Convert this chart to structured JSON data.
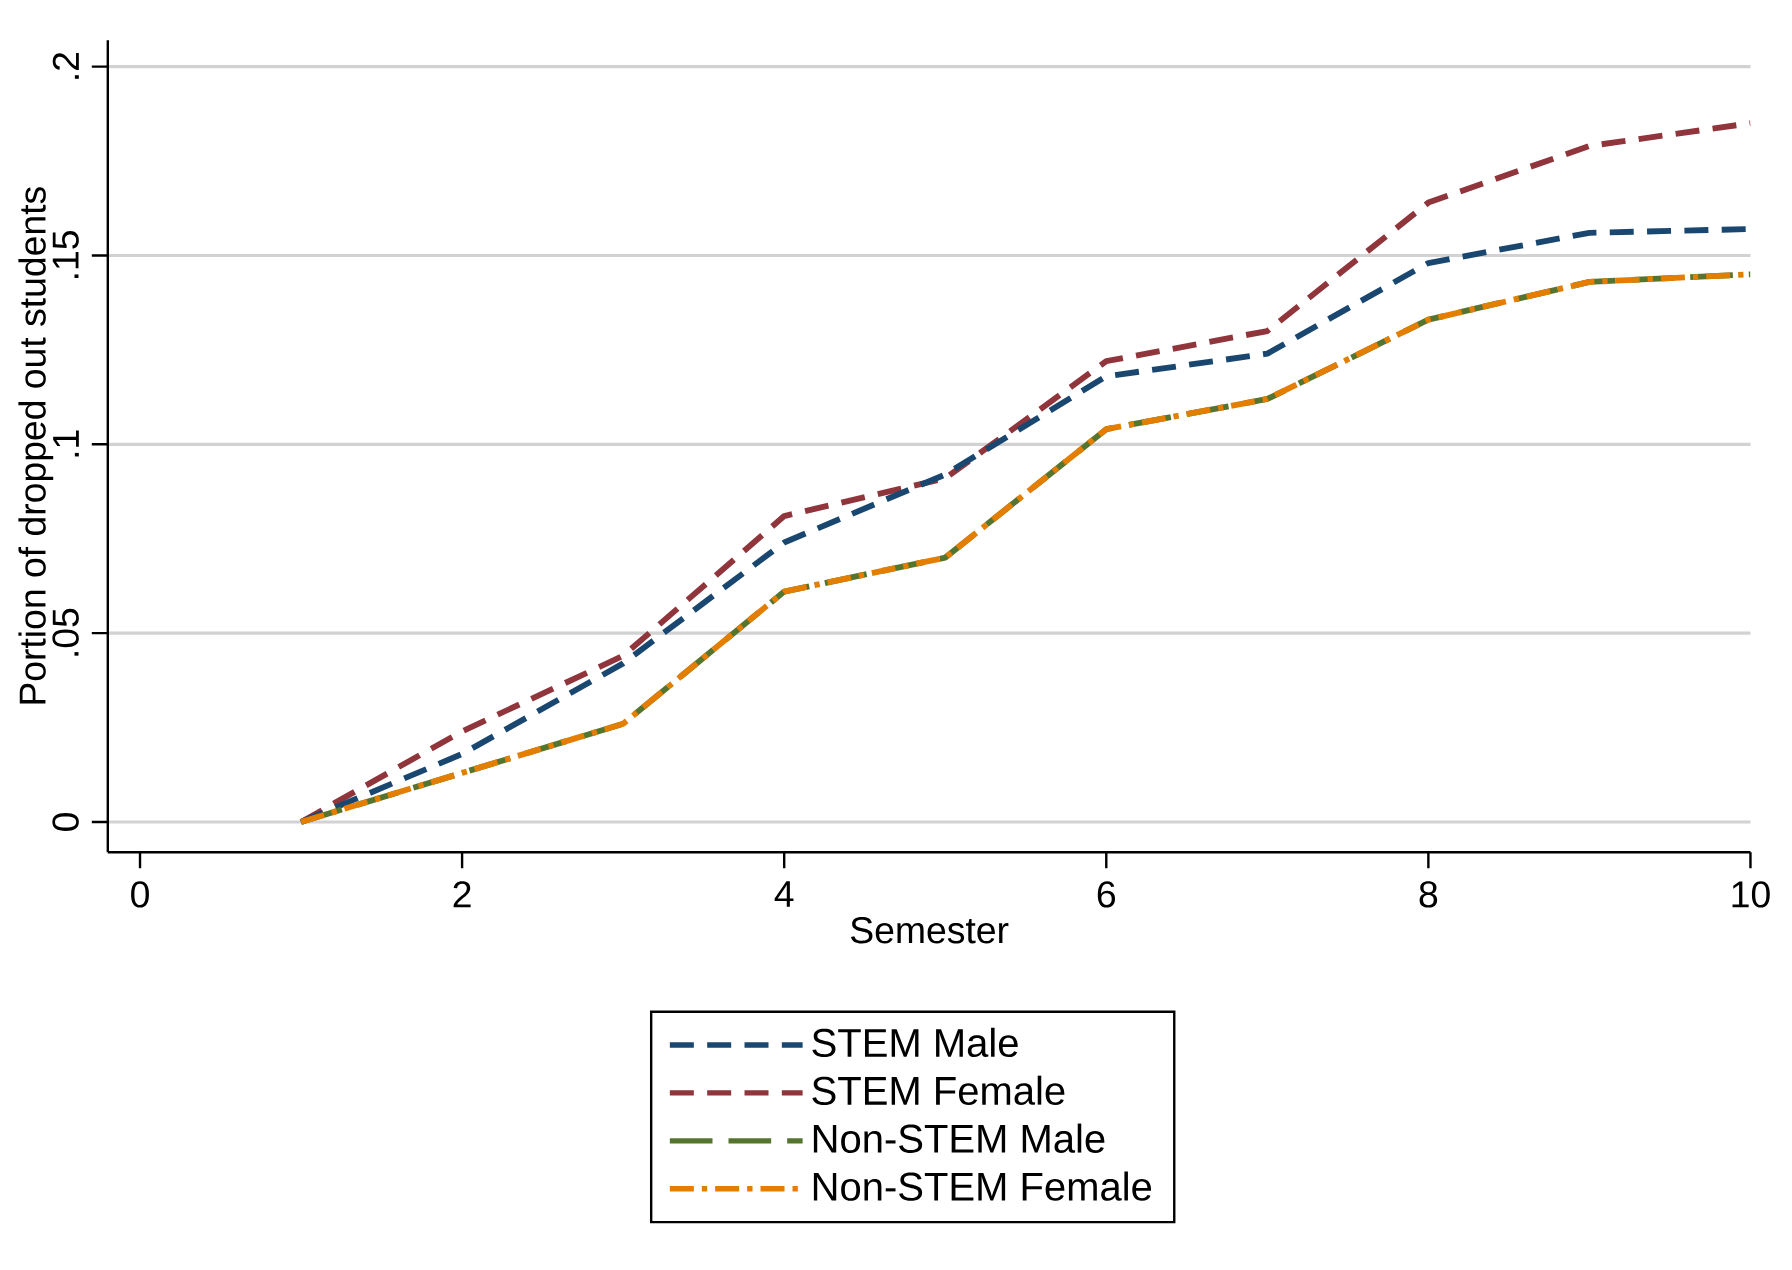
{
  "chart_data": {
    "type": "line",
    "xlabel": "Semester",
    "ylabel": "Portion of dropped out students",
    "x": [
      1,
      2,
      3,
      4,
      5,
      6,
      7,
      8,
      9,
      10
    ],
    "series": [
      {
        "name": "STEM Male",
        "color": "#1a476f",
        "line_style": "dashed",
        "values": [
          0,
          0.018,
          0.042,
          0.074,
          0.092,
          0.118,
          0.124,
          0.148,
          0.156,
          0.157
        ]
      },
      {
        "name": "STEM Female",
        "color": "#90353b",
        "line_style": "dashed",
        "values": [
          0,
          0.024,
          0.044,
          0.081,
          0.091,
          0.122,
          0.13,
          0.164,
          0.179,
          0.185
        ]
      },
      {
        "name": "Non-STEM Male",
        "color": "#55752f",
        "line_style": "longdashed",
        "values": [
          0,
          0.013,
          0.026,
          0.061,
          0.07,
          0.104,
          0.112,
          0.133,
          0.143,
          0.145
        ]
      },
      {
        "name": "Non-STEM Female",
        "color": "#e37e00",
        "line_style": "dashdot",
        "values": [
          0,
          0.013,
          0.026,
          0.061,
          0.07,
          0.104,
          0.112,
          0.133,
          0.143,
          0.145
        ]
      }
    ],
    "xlim": [
      -0.2,
      10
    ],
    "xticks": [
      0,
      2,
      4,
      6,
      8,
      10
    ],
    "ylim": [
      -0.008,
      0.207
    ],
    "yticks": [
      0,
      {
        "value": 0.05,
        "label": ".05"
      },
      {
        "value": 0.1,
        "label": ".1"
      },
      {
        "value": 0.15,
        "label": ".15"
      },
      {
        "value": 0.2,
        "label": ".2"
      }
    ],
    "grid": "y",
    "legend": "bottom",
    "marker": "none"
  }
}
